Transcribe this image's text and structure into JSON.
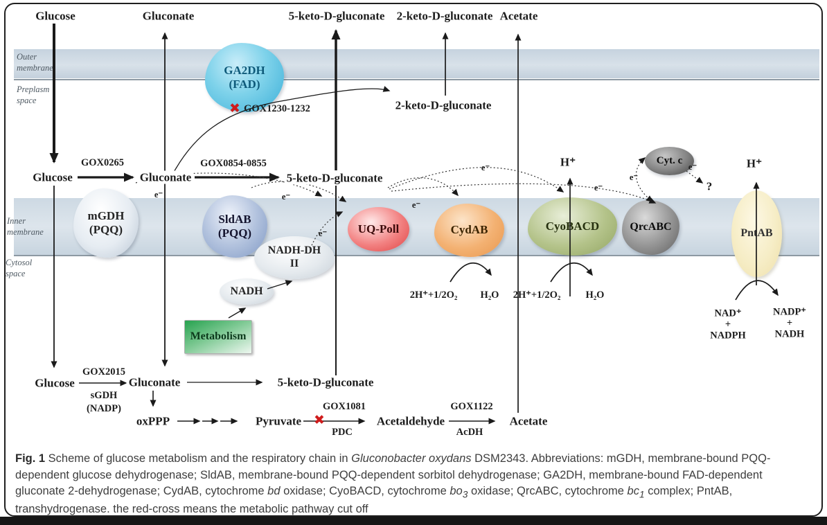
{
  "top_row": {
    "glucose": "Glucose",
    "gluconate": "Gluconate",
    "keto5": "5-keto-D-gluconate",
    "keto2": "2-keto-D-gluconate",
    "acetate": "Acetate"
  },
  "compartments": {
    "outer_membrane": "Outer\nmembrane",
    "periplasm": "Preplasm\nspace",
    "inner_membrane": "Inner\nmembrane",
    "cytosol": "Cytosol\nspace"
  },
  "periplasm_row": {
    "glucose": "Glucose",
    "gox0265": "GOX0265",
    "gluconate": "Gluconate",
    "gox0854": "GOX0854-0855",
    "keto5": "5-keto-D-gluconate",
    "keto2": "2-keto-D-gluconate",
    "gox1230": "GOX1230-1232"
  },
  "enzymes": {
    "ga2dh": "GA2DH\n(FAD)",
    "mgdh": "mGDH\n(PQQ)",
    "sldab": "SldAB\n(PQQ)",
    "nadh_dh": "NADH-DH\nII",
    "nadh": "NADH",
    "metabolism": "Metabolism",
    "uq": "UQ-Poll",
    "cydab": "CydAB",
    "cyobacd": "CyoBACD",
    "qrcabc": "QrcABC",
    "cytc": "Cyt. c",
    "pntab": "PntAB"
  },
  "cytosol_chem": {
    "h_plus": "H⁺",
    "oxygen_reaction": "2H⁺+1/2O₂",
    "water": "H₂O",
    "nad_left": "NAD⁺\n+\nNADPH",
    "nadp_right": "NADP⁺\n+\nNADH"
  },
  "electron_label": "e⁻",
  "question_mark": "?",
  "red_cross": "✖",
  "bottom_pathway": {
    "glucose": "Glucose",
    "gox2015": "GOX2015",
    "sgdh": "sGDH",
    "nadp": "(NADP)",
    "gluconate": "Gluconate",
    "keto5": "5-keto-D-gluconate",
    "oxppp": "oxPPP",
    "pyruvate": "Pyruvate",
    "gox1081": "GOX1081",
    "pdc": "PDC",
    "acetaldehyde": "Acetaldehyde",
    "gox1122": "GOX1122",
    "acdh": "AcDH",
    "acetate": "Acetate"
  },
  "caption": {
    "segments": [
      {
        "text": "Fig. 1 ",
        "bold": true
      },
      {
        "text": "Scheme of glucose metabolism and the respiratory chain in "
      },
      {
        "text": "Gluconobacter oxydans",
        "italic": true
      },
      {
        "text": " DSM2343. Abbreviations: mGDH, membrane-bound PQQ-dependent glucose dehydrogenase; SldAB, membrane-bound PQQ-dependent sorbitol dehydrogenase; GA2DH, membrane-bound FAD-dependent gluconate 2-dehydrogenase; CydAB, cytochrome "
      },
      {
        "text": "bd",
        "italic": true
      },
      {
        "text": " oxidase; CyoBACD, cytochrome "
      },
      {
        "text": "bo",
        "italic": true
      },
      {
        "text": "3",
        "sub": true,
        "italic": true
      },
      {
        "text": " oxidase; QrcABC, cytochrome "
      },
      {
        "text": "bc",
        "italic": true
      },
      {
        "text": "1",
        "sub": true,
        "italic": true
      },
      {
        "text": " complex; PntAB, transhydrogenase. the red-cross means the metabolic pathway cut off"
      }
    ]
  },
  "colors": {
    "membrane_band": "#ccd8e2",
    "red_cross": "#cf1b1b",
    "ga2dh_cyan": "#5ec4e2",
    "uq_red": "#e85555",
    "cydab_orange": "#f0a963",
    "cyobacd_green": "#a9bb7f",
    "qrcabc_gray": "#7b7b7b",
    "pntab_cream": "#f6eccb",
    "metabolism_green": "#3aa65c"
  }
}
